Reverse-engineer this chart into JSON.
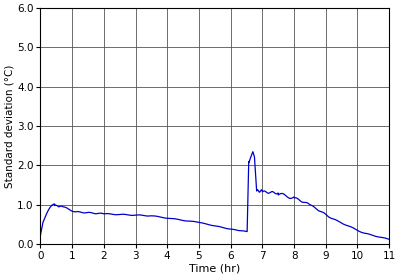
{
  "title": "",
  "xlabel": "Time (hr)",
  "ylabel": "Standard deviation (°C)",
  "xlim": [
    0,
    11
  ],
  "ylim": [
    0.0,
    6.0
  ],
  "xticks": [
    0,
    1,
    2,
    3,
    4,
    5,
    6,
    7,
    8,
    9,
    10,
    11
  ],
  "yticks": [
    0.0,
    1.0,
    2.0,
    3.0,
    4.0,
    5.0,
    6.0
  ],
  "line_color": "#0000CC",
  "line_width": 0.9,
  "bg_color": "#FFFFFF",
  "grid_color": "#555555"
}
